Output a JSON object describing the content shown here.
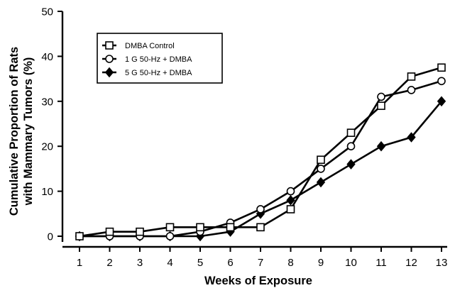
{
  "chart_data": {
    "type": "line",
    "title": "",
    "xlabel": "Weeks of Exposure",
    "ylabel_lines": [
      "Cumulative Proportion of Rats",
      "with Mammary Tumors (%)"
    ],
    "x": [
      1,
      2,
      3,
      4,
      5,
      6,
      7,
      8,
      9,
      10,
      11,
      12,
      13
    ],
    "xlim": [
      1,
      13
    ],
    "ylim": [
      0,
      50
    ],
    "yticks": [
      0,
      10,
      20,
      30,
      40,
      50
    ],
    "grid": false,
    "legend_position": "top-left",
    "series": [
      {
        "name": "DMBA Control",
        "marker": "open-square",
        "values": [
          0,
          1,
          1,
          2,
          2,
          2,
          2,
          6,
          17,
          23,
          29,
          35.5,
          37.5
        ]
      },
      {
        "name": "1 G 50-Hz + DMBA",
        "marker": "open-circle",
        "values": [
          0,
          0,
          0,
          0,
          1,
          3,
          6,
          10,
          15,
          20,
          31,
          32.5,
          34.5
        ]
      },
      {
        "name": "5 G 50-Hz + DMBA",
        "marker": "filled-diamond",
        "values": [
          0,
          0,
          0,
          0,
          0,
          1,
          5,
          8,
          12,
          16,
          20,
          22,
          30
        ]
      }
    ]
  }
}
